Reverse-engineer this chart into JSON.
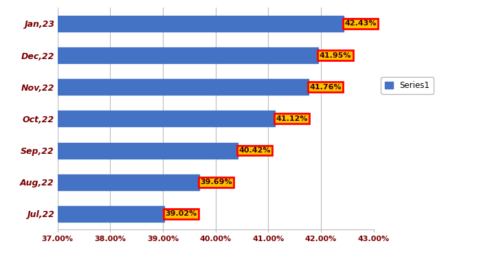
{
  "categories": [
    "Jul,22",
    "Aug,22",
    "Sep,22",
    "Oct,22",
    "Nov,22",
    "Dec,22",
    "Jan,23"
  ],
  "values": [
    39.02,
    39.69,
    40.42,
    41.12,
    41.76,
    41.95,
    42.43
  ],
  "bar_color": "#4472C4",
  "label_bg_color": "#FFC000",
  "label_border_color": "#FF0000",
  "label_text_color": "#3B0000",
  "y_label_color": "#7B0000",
  "x_label_color": "#7B0000",
  "legend_label": "Series1",
  "xlim": [
    37.0,
    43.0
  ],
  "xticks": [
    37.0,
    38.0,
    39.0,
    40.0,
    41.0,
    42.0,
    43.0
  ],
  "bar_height": 0.5,
  "background_color": "#FFFFFF",
  "figsize": [
    6.97,
    3.8
  ],
  "dpi": 100
}
